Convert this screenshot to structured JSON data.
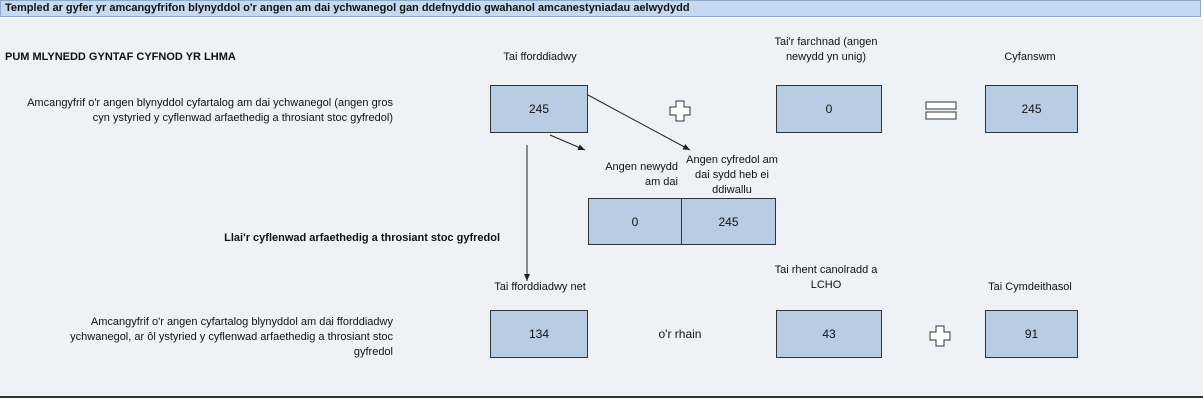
{
  "header": {
    "title": "Templed ar gyfer yr amcangyfrifon blynyddol o'r angen am dai ychwanegol gan ddefnyddio gwahanol amcanestyniadau aelwydydd"
  },
  "section": {
    "title": "PUM MLYNEDD GYNTAF CYFNOD YR LHMA"
  },
  "columns": [
    "Tai fforddiadwy",
    "Tai'r farchnad (angen newydd yn unig)",
    "Cyfanswm"
  ],
  "row1": {
    "label": "Amcangyfrif o'r angen blynyddol cyfartalog am dai ychwanegol (angen gros cyn ystyried y cyflenwad arfaethedig a throsiant stoc gyfredol)",
    "values": [
      245,
      0,
      245
    ]
  },
  "split": {
    "labels": [
      "Angen newydd am dai",
      "Angen cyfredol am dai sydd heb ei ddiwallu"
    ],
    "values": [
      0,
      245
    ]
  },
  "deduction": "Llai'r cyflenwad arfaethedig a throsiant stoc gyfredol",
  "columns2": [
    "Tai fforddiadwy net",
    "Tai rhent canolradd a LCHO",
    "Tai Cymdeithasol"
  ],
  "row2": {
    "label": "Amcangyfrif o'r angen cyfartalog blynyddol am dai fforddiadwy ychwanegol, ar ôl ystyried y cyflenwad arfaethedig a throsiant stoc gyfredol",
    "values": [
      134,
      43,
      91
    ],
    "connector": "o'r rhain"
  }
}
